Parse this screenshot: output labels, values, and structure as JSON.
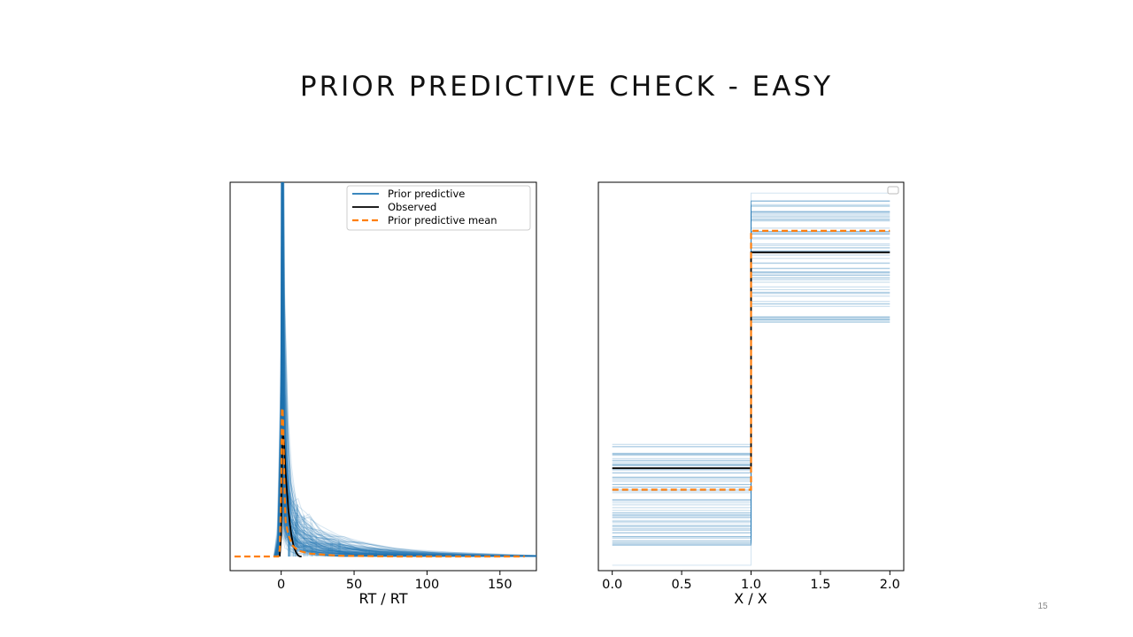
{
  "slide": {
    "title": "PRIOR PREDICTIVE CHECK - EASY",
    "page_number": "15"
  },
  "colors": {
    "prior_predictive": "#1f77b4",
    "observed": "#000000",
    "prior_predictive_mean": "#ff7f0e"
  },
  "chart_data": [
    {
      "type": "line",
      "title": "",
      "xlabel": "RT / RT",
      "ylabel": "",
      "xlim": [
        -35,
        175
      ],
      "ylim": [
        -0.02,
        0.53
      ],
      "xticks": [
        0,
        50,
        100,
        150
      ],
      "xtick_labels": [
        "0",
        "50",
        "100",
        "150"
      ],
      "yticks_visible": false,
      "grid": false,
      "legend": {
        "placement": "top-right",
        "entries": [
          "Prior predictive",
          "Observed",
          "Prior predictive mean"
        ]
      },
      "series": [
        {
          "name": "Prior predictive",
          "style": "many thin translucent lines",
          "x": [
            -2,
            -1,
            0,
            0.5,
            1,
            2,
            3,
            5,
            8,
            12,
            18,
            25,
            35,
            50,
            70,
            100
          ],
          "values": [
            0,
            0.02,
            0.15,
            0.46,
            0.2,
            0.1,
            0.06,
            0.04,
            0.03,
            0.02,
            0.015,
            0.01,
            0.006,
            0.003,
            0.001,
            0
          ]
        },
        {
          "name": "Observed",
          "x": [
            -1,
            0,
            0.5,
            1,
            1.5,
            2,
            2.5,
            3,
            4,
            5,
            6,
            7,
            8,
            9,
            10,
            11,
            12,
            13,
            14
          ],
          "values": [
            0,
            0.03,
            0.13,
            0.17,
            0.17,
            0.16,
            0.14,
            0.12,
            0.09,
            0.065,
            0.045,
            0.03,
            0.02,
            0.012,
            0.007,
            0.003,
            0.001,
            0.0,
            0.0
          ]
        },
        {
          "name": "Prior predictive mean",
          "x": [
            -32,
            -2,
            -1,
            0,
            0.5,
            1,
            1.5,
            2,
            2.5,
            3,
            5,
            8,
            12,
            20,
            40,
            80,
            120,
            167
          ],
          "values": [
            0,
            0,
            0.01,
            0.1,
            0.21,
            0.21,
            0.18,
            0.12,
            0.08,
            0.05,
            0.03,
            0.015,
            0.008,
            0.004,
            0.001,
            0,
            0,
            0
          ]
        }
      ]
    },
    {
      "type": "line",
      "title": "",
      "xlabel": "X / X",
      "ylabel": "",
      "xlim": [
        -0.1,
        2.1
      ],
      "ylim": [
        0.2,
        0.92
      ],
      "xticks": [
        0,
        0.5,
        1,
        1.5,
        2
      ],
      "xtick_labels": [
        "0.0",
        "0.5",
        "1.0",
        "1.5",
        "2.0"
      ],
      "yticks_visible": false,
      "grid": false,
      "legend": {
        "placement": "top-right",
        "entries": []
      },
      "series": [
        {
          "name": "Prior predictive",
          "style": "many thin translucent step lines (ECDF)",
          "x": [
            0,
            1,
            1,
            2
          ],
          "values_low": [
            0.24,
            0.24,
            0.66,
            0.66
          ],
          "values_high": [
            0.44,
            0.44,
            0.89,
            0.89
          ]
        },
        {
          "name": "Observed",
          "x": [
            0,
            1,
            1,
            2
          ],
          "values": [
            0.39,
            0.39,
            0.79,
            0.79
          ]
        },
        {
          "name": "Prior predictive mean",
          "x": [
            0,
            1,
            1,
            2
          ],
          "values": [
            0.35,
            0.35,
            0.83,
            0.83
          ]
        }
      ]
    }
  ]
}
